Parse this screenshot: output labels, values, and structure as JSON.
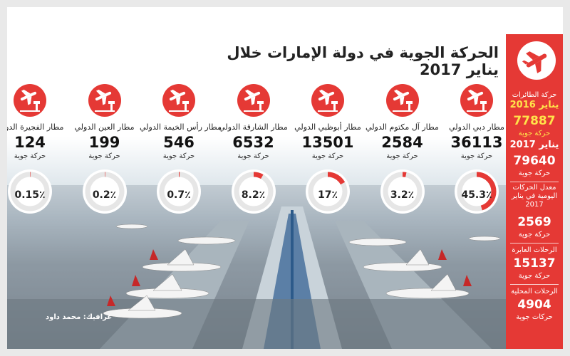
{
  "title": "الحركة الجوية في دولة الإمارات خلال يناير 2017",
  "airports": [
    {
      "name": "مطار دبي الدولي",
      "movements": "36113",
      "unit": "حركة جوية",
      "percent_label": "45.3٪",
      "share": 45.3
    },
    {
      "name": "مطار آل مكتوم الدولي",
      "movements": "2584",
      "unit": "حركة جوية",
      "percent_label": "3.2٪",
      "share": 3.2
    },
    {
      "name": "مطار أبوظبي الدولي",
      "movements": "13501",
      "unit": "حركة جوية",
      "percent_label": "17٪",
      "share": 17
    },
    {
      "name": "مطار الشارقة الدولي",
      "movements": "6532",
      "unit": "حركة جوية",
      "percent_label": "8.2٪",
      "share": 8.2
    },
    {
      "name": "مطار رأس الخيمة الدولي",
      "movements": "546",
      "unit": "حركة جوية",
      "percent_label": "0.7٪",
      "share": 0.7
    },
    {
      "name": "مطار العين الدولي",
      "movements": "199",
      "unit": "حركة جوية",
      "percent_label": "0.2٪",
      "share": 0.2
    },
    {
      "name": "مطار الفجيرة الدولي",
      "movements": "124",
      "unit": "حركة جوية",
      "percent_label": "0.15٪",
      "share": 0.15
    }
  ],
  "sidebar": {
    "heading": "حركة الطائرات",
    "jan2016_label": "يناير 2016",
    "jan2016_value": "77887",
    "jan2016_unit": "حركة جوية",
    "jan2017_label": "يناير 2017",
    "jan2017_value": "79640",
    "jan2017_unit": "حركة جوية",
    "daily_label": "معدل الحركات اليومية في يناير 2017",
    "daily_value": "2569",
    "daily_unit": "حركة جوية",
    "transit_label": "الرحلات العابرة",
    "transit_value": "15137",
    "transit_unit": "حركة جوية",
    "domestic_label": "الرحلات المحلية",
    "domestic_value": "4904",
    "domestic_unit": "حركات جوية"
  },
  "credit": "غرافيك: محمد داود",
  "colors": {
    "accent": "#e53935",
    "highlight": "#ffe34a",
    "ring_bg": "#e6e6e6"
  },
  "icons": {
    "airport": "airplane-tower-icon",
    "logo": "airplane-takeoff-icon"
  }
}
